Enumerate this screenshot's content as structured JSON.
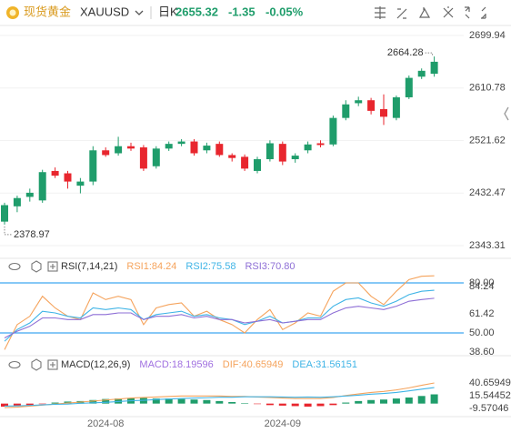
{
  "header": {
    "name": "现货黄金",
    "symbol": "XAUUSD",
    "period": "日K",
    "change": "-1.35",
    "change_percent": "-0.05%"
  },
  "chart_data": [
    {
      "type": "candlestick",
      "categories": [
        null,
        null,
        null,
        null,
        null,
        null,
        null,
        null,
        "2024-08",
        null,
        null,
        null,
        null,
        null,
        null,
        null,
        null,
        null,
        null,
        null,
        null,
        null,
        "2024-09",
        null,
        null,
        null,
        null,
        null,
        null,
        null,
        null,
        null,
        null,
        null,
        null
      ],
      "open": [
        2384,
        2410,
        2426,
        2420,
        2470,
        2466,
        2445,
        2452,
        2505,
        2500,
        2512,
        2510,
        2478,
        2508,
        2516,
        2520,
        2505,
        2516,
        2497,
        2494,
        2470,
        2490,
        2516,
        2490,
        2505,
        2517,
        2515,
        2560,
        2585,
        2590,
        2575,
        2560,
        2595,
        2630,
        2635
      ],
      "high": [
        2416,
        2428,
        2440,
        2472,
        2476,
        2470,
        2458,
        2512,
        2510,
        2528,
        2518,
        2514,
        2512,
        2520,
        2524,
        2524,
        2518,
        2520,
        2500,
        2498,
        2494,
        2522,
        2520,
        2500,
        2520,
        2522,
        2564,
        2590,
        2596,
        2594,
        2600,
        2598,
        2632,
        2644,
        2664.28
      ],
      "low": [
        2378.97,
        2400,
        2418,
        2416,
        2458,
        2440,
        2432,
        2446,
        2494,
        2496,
        2504,
        2470,
        2474,
        2504,
        2512,
        2496,
        2500,
        2494,
        2486,
        2470,
        2466,
        2486,
        2480,
        2484,
        2500,
        2510,
        2512,
        2556,
        2580,
        2566,
        2548,
        2556,
        2592,
        2626,
        2630
      ],
      "close": [
        2412,
        2424,
        2433,
        2468,
        2462,
        2452,
        2452,
        2505,
        2497,
        2512,
        2508,
        2474,
        2508,
        2516,
        2520,
        2500,
        2513,
        2497,
        2492,
        2474,
        2490,
        2517,
        2486,
        2496,
        2515,
        2514,
        2560,
        2583,
        2590,
        2572,
        2562,
        2595,
        2628,
        2640,
        2655.32
      ],
      "up_color": "#1f9d6b",
      "down_color": "#e8262e",
      "ylim": [
        2324.78,
        2716.92
      ],
      "yticks": [
        2343.31,
        2432.47,
        2521.62,
        2610.78,
        2699.94
      ],
      "grid": true
    },
    {
      "type": "line",
      "title": "RSI(7,14,21)",
      "series": [
        {
          "name": "RSI1:84.24",
          "color": "#f5a35c",
          "values": [
            40,
            55,
            60,
            72,
            65,
            60,
            58,
            74,
            70,
            72,
            70,
            55,
            65,
            67,
            68,
            60,
            63,
            58,
            55,
            50,
            58,
            64,
            52,
            56,
            62,
            60,
            75,
            80,
            80,
            72,
            67,
            75,
            82,
            84,
            84.24
          ]
        },
        {
          "name": "RSI2:75.58",
          "color": "#3fb4e6",
          "values": [
            45,
            52,
            56,
            63,
            62,
            60,
            59,
            65,
            64,
            65,
            64,
            58,
            61,
            62,
            63,
            60,
            61,
            59,
            58,
            55,
            57,
            60,
            56,
            57,
            59,
            59,
            66,
            70,
            71,
            68,
            66,
            69,
            73,
            75,
            75.58
          ]
        },
        {
          "name": "RSI3:70.80",
          "color": "#8e6fd6",
          "values": [
            47,
            51,
            54,
            59,
            59,
            58,
            58,
            61,
            61,
            62,
            62,
            58,
            60,
            60,
            61,
            59,
            60,
            58,
            58,
            56,
            57,
            58,
            56,
            57,
            58,
            58,
            62,
            65,
            66,
            65,
            64,
            66,
            69,
            70,
            70.8
          ]
        }
      ],
      "ylim": [
        36.9,
        86
      ],
      "yticks": [
        {
          "value": 38.6,
          "label": "38.60"
        },
        {
          "value": 50,
          "label": "50.00"
        },
        61.42,
        {
          "value": 80,
          "label": "80.00"
        }
      ],
      "hlines": [
        80,
        50
      ],
      "hline_color": "#3ea6f0"
    },
    {
      "type": "macd",
      "title": "MACD(12,26,9)",
      "series": [
        {
          "name": "MACD:18.19596",
          "color": "#a070e0",
          "values": [
            -6,
            -5,
            -3,
            -1,
            2,
            4,
            5,
            7,
            9,
            10,
            11,
            11,
            10,
            10,
            9,
            8,
            7,
            5,
            3,
            1,
            -1,
            -3,
            -4,
            -5,
            -6,
            -5,
            -3,
            2,
            5,
            7,
            8,
            10,
            12,
            15,
            18.19596
          ]
        },
        {
          "name": "DIF:40.65949",
          "color": "#f5a35c",
          "values": [
            -8,
            -7,
            -5,
            -3,
            -1,
            1,
            3,
            5,
            7,
            9,
            11,
            12,
            13,
            14,
            15,
            15,
            15,
            15,
            14,
            14,
            13,
            12,
            11,
            10,
            10,
            10,
            12,
            16,
            19,
            22,
            24,
            27,
            31,
            36,
            40.65949
          ]
        },
        {
          "name": "DEA:31.56151",
          "color": "#3fb4e6",
          "values": [
            -5,
            -4.5,
            -3.5,
            -2.5,
            -1.5,
            -1,
            0.5,
            1.5,
            2.5,
            4,
            5.5,
            6.5,
            8,
            9,
            10,
            11,
            11.5,
            12.5,
            12.5,
            13.5,
            13.5,
            13.5,
            13,
            12.5,
            13,
            12.5,
            13.5,
            15,
            16.5,
            18.5,
            20,
            22,
            25,
            28.5,
            31.56151
          ]
        }
      ],
      "up_color": "#1f9d6b",
      "down_color": "#e8262e",
      "ylim": [
        -23.92,
        63.98
      ],
      "yticks": [
        -9.57046,
        15.54452,
        40.65949
      ]
    }
  ]
}
